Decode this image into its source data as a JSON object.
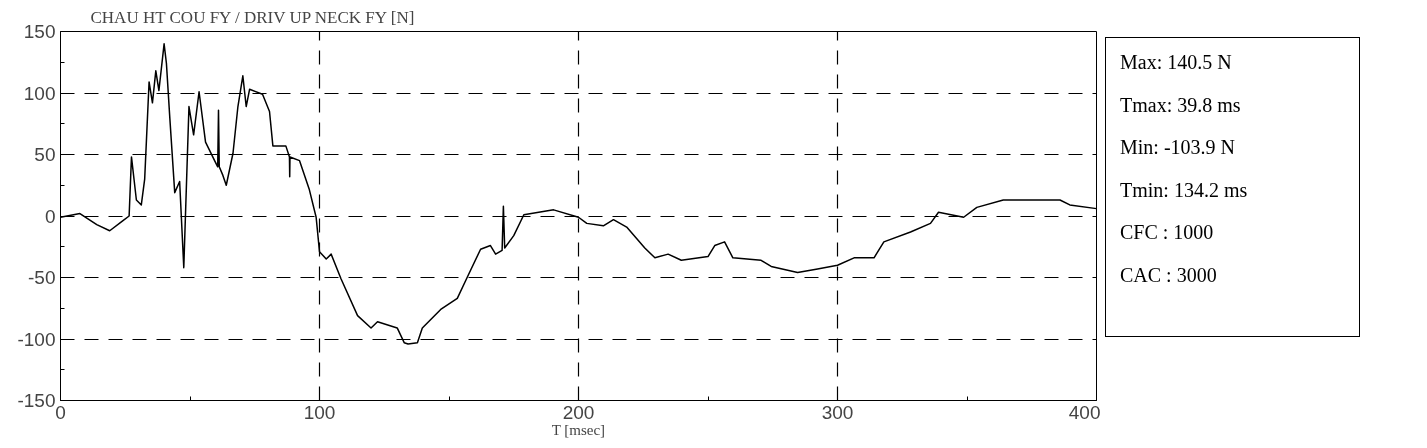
{
  "chart_data": {
    "type": "line",
    "title": "CHAU HT COU FY / DRIV UP NECK FY [N]",
    "xlabel": "T [msec]",
    "annotations": [
      "Max:  140.5 N",
      "Tmax:  39.8 ms",
      "Min: -103.9 N",
      "Tmin: 134.2 ms",
      "CFC : 1000",
      "CAC : 3000"
    ],
    "xlim": [
      0,
      400
    ],
    "ylim": [
      -150,
      150
    ],
    "xticks": [
      0,
      {
        "value": 50,
        "label": null
      },
      100,
      {
        "value": 150,
        "label": null
      },
      200,
      {
        "value": 250,
        "label": null
      },
      300,
      {
        "value": 350,
        "label": null
      },
      400
    ],
    "yticks": [
      -150,
      {
        "value": -125,
        "label": null
      },
      -100,
      {
        "value": -75,
        "label": null
      },
      -50,
      {
        "value": -25,
        "label": null
      },
      0,
      {
        "value": 25,
        "label": null
      },
      50,
      {
        "value": 75,
        "label": null
      },
      100,
      {
        "value": 125,
        "label": null
      },
      150
    ],
    "grid": true,
    "line_style": "solid",
    "marker": "none",
    "series": [
      {
        "color": "#000000",
        "x": [
          0,
          7.5,
          14,
          19,
          24,
          26.5,
          27.4,
          29.3,
          31.2,
          32.5,
          34.2,
          35.5,
          36.8,
          38,
          40,
          40.9,
          42.2,
          44.1,
          46,
          47.6,
          49.6,
          51.4,
          53.5,
          56,
          59.5,
          60.7,
          61,
          61.3,
          62.7,
          64,
          66.6,
          68.5,
          70.4,
          71.7,
          73,
          78,
          80.7,
          82,
          87,
          88.4,
          88.5,
          88.6,
          92.3,
          96,
          98.7,
          100,
          102.6,
          104.5,
          108.3,
          114.7,
          119.9,
          122.4,
          130,
          132.7,
          134.2,
          137.8,
          139.7,
          146.8,
          153.2,
          157,
          162.2,
          166,
          168,
          170.5,
          171,
          171.5,
          175,
          178.9,
          190.4,
          200,
          203.2,
          209.6,
          213.5,
          218.6,
          225.6,
          229.5,
          234.6,
          239.7,
          250,
          252.6,
          256.4,
          259.6,
          270.5,
          274.4,
          284.6,
          292.3,
          300,
          306.4,
          314.1,
          317.9,
          328.2,
          335.9,
          339,
          348.7,
          353.8,
          364,
          375.6,
          385.9,
          389.7,
          400
        ],
        "values": [
          -1,
          2,
          -7,
          -12,
          -4,
          0,
          48,
          13,
          9,
          30,
          109,
          92,
          118,
          102,
          140,
          124,
          80,
          19,
          28,
          -42,
          89,
          66,
          101,
          60,
          45,
          40,
          86,
          40,
          33,
          25,
          51,
          89,
          114,
          89,
          103,
          99,
          85,
          57,
          57,
          48,
          32,
          48,
          45,
          22,
          -1,
          -29,
          -35,
          -31,
          -51,
          -81,
          -91,
          -86,
          -91,
          -103,
          -104,
          -103,
          -91,
          -76,
          -67,
          -50,
          -27,
          -24,
          -31,
          -28,
          8,
          -26,
          -16,
          1,
          5,
          -1,
          -6,
          -8,
          -3,
          -9,
          -26,
          -34,
          -31,
          -36,
          -33,
          -24,
          -21,
          -34,
          -36,
          -41,
          -46,
          -43,
          -40,
          -34,
          -34,
          -21,
          -13,
          -6,
          3,
          -1,
          7,
          13,
          13,
          13,
          9,
          6
        ]
      }
    ]
  }
}
